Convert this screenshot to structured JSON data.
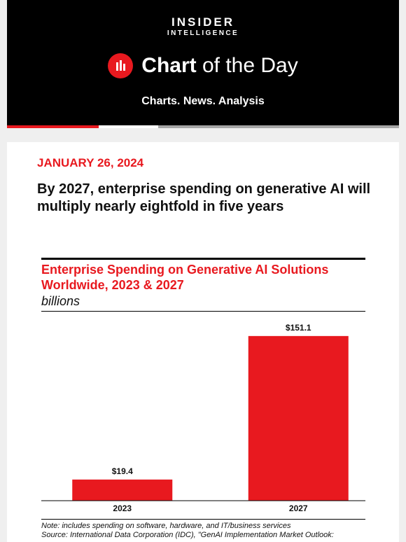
{
  "header": {
    "brand_line1": "INSIDER",
    "brand_line2": "INTELLIGENCE",
    "logo_bold": "Chart",
    "logo_light": " of the Day",
    "tagline": "Charts. News. Analysis",
    "logo_icon": "bar-chart-icon",
    "accent": "#e8191f"
  },
  "article": {
    "date": "JANUARY 26, 2024",
    "headline": "By 2027, enterprise spending on generative AI will multiply nearly eightfold in five years"
  },
  "chart_data": {
    "type": "bar",
    "title": "Enterprise Spending on Generative AI Solutions Worldwide, 2023 & 2027",
    "unit": "billions",
    "categories": [
      "2023",
      "2027"
    ],
    "values": [
      19.4,
      151.1
    ],
    "value_labels": [
      "$19.4",
      "$151.1"
    ],
    "ylim": [
      0,
      160
    ],
    "grid": false,
    "bar_color": "#e8191f",
    "note": "Note: includes spending on software, hardware, and IT/business services",
    "source": "Source: International Data Corporation (IDC), \"GenAI Implementation Market Outlook:"
  }
}
